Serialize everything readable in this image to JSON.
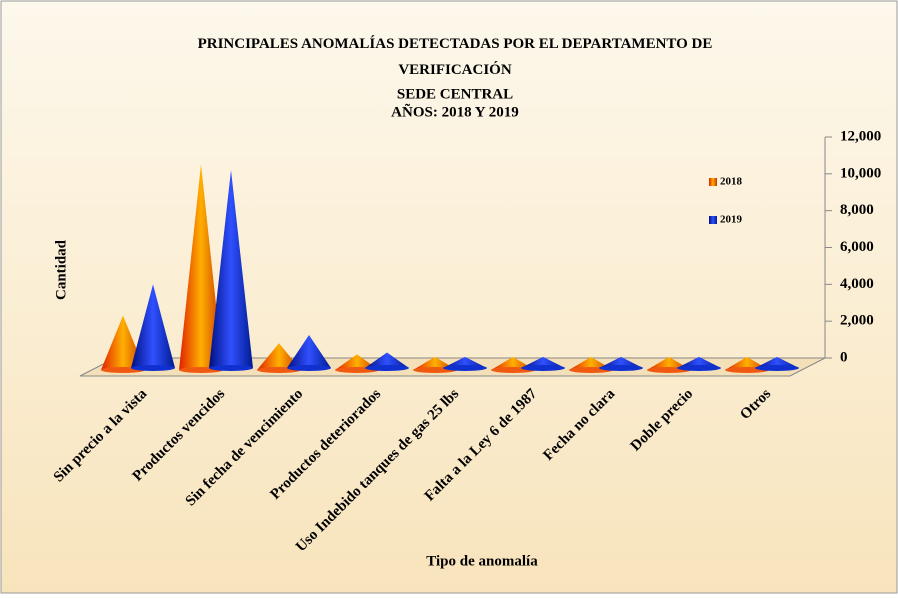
{
  "chart_data": {
    "type": "cone",
    "title": "PRINCIPALES  ANOMALÍAS  DETECTADAS  POR EL DEPARTAMENTO  DE VERIFICACIÓN",
    "subtitle": "SEDE CENTRAL",
    "subtitle2": "AÑOS: 2018 Y 2019",
    "x_label": "Tipo de anomalía",
    "y_label": "Cantidad",
    "categories": [
      "Sin precio a la vista",
      "Productos vencidos",
      "Sin fecha de vencimiento",
      "Productos deteriorados",
      "Uso Indebido tanques de gas 25 lbs",
      "Falta a la Ley 6 de 1987",
      "Fecha no clara",
      "Doble precio",
      "Otros"
    ],
    "series": [
      {
        "name": "2018",
        "color": "#f05a10",
        "values": [
          2300,
          10500,
          800,
          200,
          60,
          60,
          60,
          60,
          60
        ]
      },
      {
        "name": "2019",
        "color": "#1030d0",
        "values": [
          4000,
          10200,
          1250,
          300,
          60,
          60,
          60,
          60,
          60
        ]
      }
    ],
    "ylim": [
      0,
      12000
    ],
    "yticks": [
      0,
      {
        "value": 2000,
        "label": "2,000"
      },
      {
        "value": 4000,
        "label": "4,000"
      },
      {
        "value": 6000,
        "label": "6,000"
      },
      {
        "value": 8000,
        "label": "8,000"
      },
      {
        "value": 10000,
        "label": "10,000"
      },
      {
        "value": 12000,
        "label": "12,000"
      }
    ],
    "legend": "right"
  }
}
